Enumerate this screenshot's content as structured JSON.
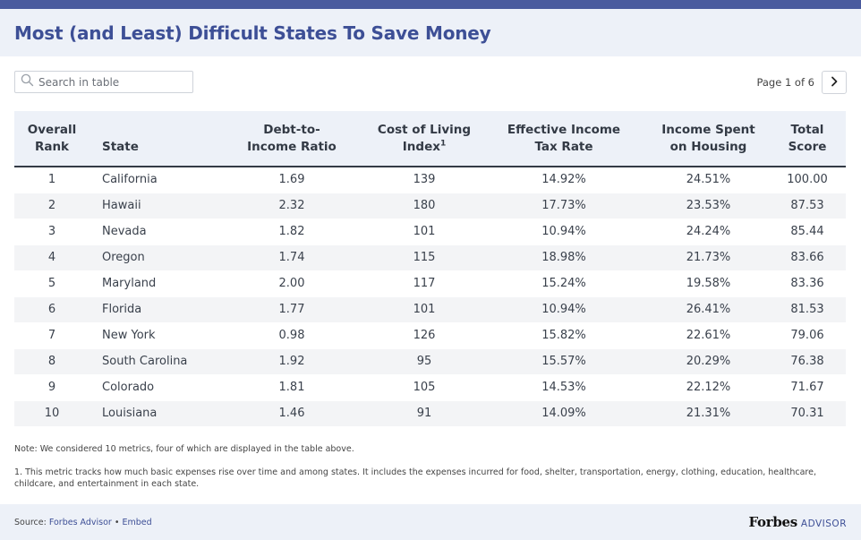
{
  "header": {
    "title": "Most (and Least) Difficult States To Save Money"
  },
  "search": {
    "placeholder": "Search in table"
  },
  "pager": {
    "label": "Page 1 of 6"
  },
  "table": {
    "columns": [
      {
        "line1": "Overall",
        "line2": "Rank"
      },
      {
        "line1": "",
        "line2": "State"
      },
      {
        "line1": "Debt-to-",
        "line2": "Income Ratio"
      },
      {
        "line1": "Cost of Living",
        "line2": "Index",
        "sup": "1"
      },
      {
        "line1": "Effective Income",
        "line2": "Tax Rate"
      },
      {
        "line1": "Income Spent",
        "line2": "on Housing"
      },
      {
        "line1": "Total",
        "line2": "Score"
      }
    ],
    "rows": [
      [
        "1",
        "California",
        "1.69",
        "139",
        "14.92%",
        "24.51%",
        "100.00"
      ],
      [
        "2",
        "Hawaii",
        "2.32",
        "180",
        "17.73%",
        "23.53%",
        "87.53"
      ],
      [
        "3",
        "Nevada",
        "1.82",
        "101",
        "10.94%",
        "24.24%",
        "85.44"
      ],
      [
        "4",
        "Oregon",
        "1.74",
        "115",
        "18.98%",
        "21.73%",
        "83.66"
      ],
      [
        "5",
        "Maryland",
        "2.00",
        "117",
        "15.24%",
        "19.58%",
        "83.36"
      ],
      [
        "6",
        "Florida",
        "1.77",
        "101",
        "10.94%",
        "26.41%",
        "81.53"
      ],
      [
        "7",
        "New York",
        "0.98",
        "126",
        "15.82%",
        "22.61%",
        "79.06"
      ],
      [
        "8",
        "South Carolina",
        "1.92",
        "95",
        "15.57%",
        "20.29%",
        "76.38"
      ],
      [
        "9",
        "Colorado",
        "1.81",
        "105",
        "14.53%",
        "22.12%",
        "71.67"
      ],
      [
        "10",
        "Louisiana",
        "1.46",
        "91",
        "14.09%",
        "21.31%",
        "70.31"
      ]
    ]
  },
  "notes": {
    "note": "Note: We considered 10 metrics, four of which are displayed in the table above.",
    "footnote": "1. This metric tracks how much basic expenses rise over time and among states. It includes the expenses incurred for food, shelter, transportation, energy, clothing, education, healthcare, childcare, and entertainment in each state."
  },
  "footer": {
    "source_prefix": "Source: ",
    "source_link": "Forbes Advisor",
    "separator": " • ",
    "embed_link": "Embed",
    "brand_name": "Forbes",
    "brand_sub": "ADVISOR"
  },
  "colors": {
    "accent": "#3d4f96",
    "topbar": "#4a5b9e",
    "header_bg": "#edf1f8",
    "stripe": "#f3f4f6"
  }
}
